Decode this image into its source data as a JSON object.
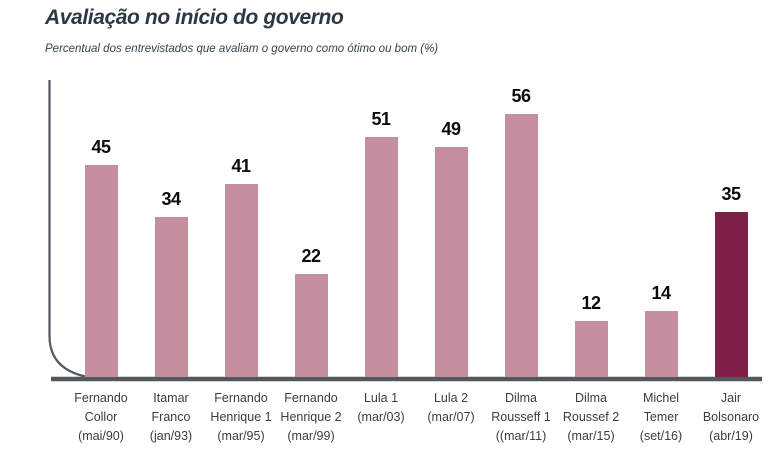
{
  "page": {
    "title": "Avaliação no início do governo",
    "subtitle": "Percentual dos entrevistados que avaliam o governo como ótimo ou bom (%)"
  },
  "chart_data": {
    "type": "bar",
    "title": "Avaliação no início do governo",
    "subtitle": "Percentual dos entrevistados que avaliam o governo como ótimo ou bom (%)",
    "unit": "%",
    "ylim": [
      0,
      65
    ],
    "grid": false,
    "legend": false,
    "categories": [
      "Fernando Collor (mai/90)",
      "Itamar Franco (jan/93)",
      "Fernando Henrique 1 (mar/95)",
      "Fernando Henrique 2 (mar/99)",
      "Lula 1 (mar/03)",
      "Lula 2 (mar/07)",
      "Dilma Rousseff 1 ((mar/11)",
      "Dilma Roussef 2 (mar/15)",
      "Michel Temer (set/16)",
      "Jair Bolsonaro (abr/19)"
    ],
    "values": [
      45,
      34,
      41,
      22,
      51,
      49,
      56,
      12,
      14,
      35
    ],
    "bars": [
      {
        "name": "Fernando Collor",
        "date": "(mai/90)",
        "value": 45,
        "highlight": false
      },
      {
        "name": "Itamar Franco",
        "date": "(jan/93)",
        "value": 34,
        "highlight": false
      },
      {
        "name": "Fernando Henrique 1",
        "date": "(mar/95)",
        "value": 41,
        "highlight": false
      },
      {
        "name": "Fernando Henrique 2",
        "date": "(mar/99)",
        "value": 22,
        "highlight": false
      },
      {
        "name": "Lula 1",
        "date": "(mar/03)",
        "value": 51,
        "highlight": false
      },
      {
        "name": "Lula 2",
        "date": "(mar/07)",
        "value": 49,
        "highlight": false
      },
      {
        "name": "Dilma Rousseff 1",
        "date": "((mar/11)",
        "value": 56,
        "highlight": false
      },
      {
        "name": "Dilma Roussef 2",
        "date": "(mar/15)",
        "value": 12,
        "highlight": false
      },
      {
        "name": "Michel Temer",
        "date": "(set/16)",
        "value": 14,
        "highlight": false
      },
      {
        "name": "Jair Bolsonaro",
        "date": "(abr/19)",
        "value": 35,
        "highlight": true
      }
    ],
    "colors": {
      "bar": "#c48e9d",
      "highlight": "#7d2148",
      "axis": "#53585c",
      "title": "#2c3844",
      "value_label": "#0c0c0c"
    }
  }
}
